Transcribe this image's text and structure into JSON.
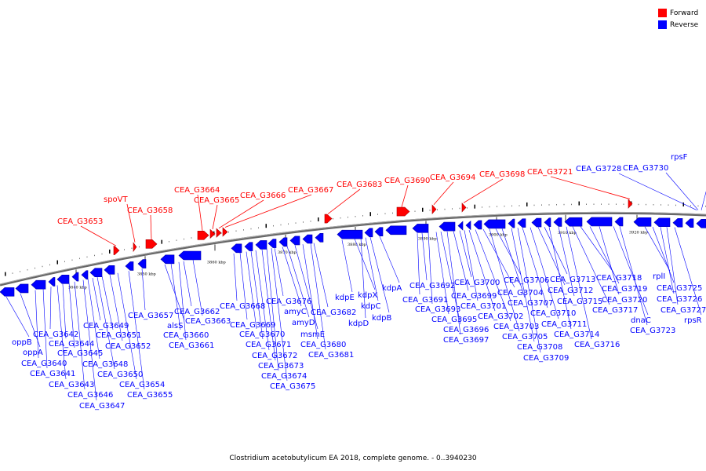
{
  "legend": {
    "forward_label": "Forward",
    "reverse_label": "Reverse",
    "forward_color": "#ff0000",
    "reverse_color": "#0000ff"
  },
  "footer": "Clostridium acetobutylicum EA 2018, complete genome. - 0..3940230",
  "scale_ticks": [
    "3840 kbp",
    "3850 kbp",
    "3860 kbp",
    "3870 kbp",
    "3880 kbp",
    "3890 kbp",
    "3900 kbp",
    "3910 kbp",
    "3920 kbp"
  ],
  "forward_genes": [
    "CEA_G3653",
    "spoVT",
    "CEA_G3658",
    "CEA_G3664",
    "CEA_G3665",
    "CEA_G3666",
    "CEA_G3667",
    "CEA_G3683",
    "CEA_G3690",
    "CEA_G3694",
    "CEA_G3698",
    "CEA_G3721"
  ],
  "reverse_genes": [
    "oppB",
    "oppA",
    "CEA_G3640",
    "CEA_G3641",
    "CEA_G3642",
    "CEA_G3643",
    "CEA_G3644",
    "CEA_G3645",
    "CEA_G3646",
    "CEA_G3647",
    "CEA_G3648",
    "CEA_G3649",
    "CEA_G3650",
    "CEA_G3651",
    "CEA_G3652",
    "CEA_G3654",
    "CEA_G3655",
    "CEA_G3657",
    "alsS",
    "CEA_G3660",
    "CEA_G3661",
    "CEA_G3662",
    "CEA_G3663",
    "CEA_G3668",
    "CEA_G3669",
    "CEA_G3670",
    "CEA_G3671",
    "CEA_G3672",
    "CEA_G3673",
    "CEA_G3674",
    "CEA_G3675",
    "CEA_G3676",
    "amyC",
    "amyD",
    "msmE",
    "CEA_G3680",
    "CEA_G3681",
    "CEA_G3682",
    "kdpE",
    "kdpX",
    "kdpD",
    "kdpC",
    "kdpB",
    "kdpA",
    "CEA_G3691",
    "CEA_G3692",
    "CEA_G3693",
    "CEA_G3695",
    "CEA_G3696",
    "CEA_G3697",
    "CEA_G3699",
    "CEA_G3700",
    "CEA_G3701",
    "CEA_G3702",
    "CEA_G3703",
    "CEA_G3704",
    "CEA_G3705",
    "CEA_G3706",
    "CEA_G3707",
    "CEA_G3708",
    "CEA_G3709",
    "CEA_G3710",
    "CEA_G3711",
    "CEA_G3712",
    "CEA_G3713",
    "CEA_G3714",
    "CEA_G3715",
    "CEA_G3716",
    "CEA_G3717",
    "CEA_G3718",
    "CEA_G3719",
    "CEA_G3720",
    "CEA_G3723",
    "CEA_G3725",
    "CEA_G3726",
    "CEA_G3727",
    "CEA_G3728",
    "CEA_G3730",
    "dnaC",
    "rplI",
    "rpsR",
    "rpsF"
  ]
}
